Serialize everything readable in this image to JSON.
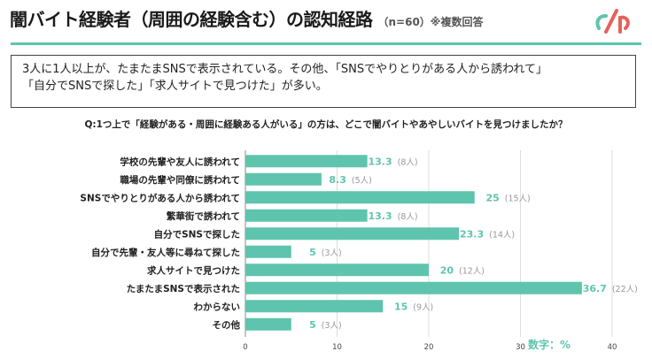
{
  "header": {
    "title": "闇バイト経験者（周囲の経験含む）の認知経路",
    "note": "（n=60）※複数回答",
    "logo_icon": "brand-logo-icon",
    "accent_color": "#5ec4ad"
  },
  "summary": {
    "line1": "3人に1人以上が、たまたまSNSで表示されている。その他、「SNSでやりとりがある人から誘われて」",
    "line2": "「自分でSNSで探した」「求人サイトで見つけた」が多い。"
  },
  "question": "Q:1つ上で「経験がある・周囲に経験ある人がいる」の方は、どこで闇バイトやあやしいバイトを見つけましたか？",
  "unit_label": "数字：%",
  "chart_data": {
    "type": "bar",
    "orientation": "horizontal",
    "categories": [
      "学校の先輩や友人に誘われて",
      "職場の先輩や同僚に誘われて",
      "SNSでやりとりがある人から誘われて",
      "繁華街で誘われて",
      "自分でSNSで探した",
      "自分で先輩・友人等に尋ねて探した",
      "求人サイトで見つけた",
      "たまたまSNSで表示された",
      "わからない",
      "その他"
    ],
    "values": [
      13.3,
      8.3,
      25,
      13.3,
      23.3,
      5,
      20,
      36.7,
      15,
      5
    ],
    "value_labels": [
      "13.3",
      "8.3",
      "25",
      "13.3",
      "23.3",
      "5",
      "20",
      "36.7",
      "15",
      "5"
    ],
    "counts": [
      "(8人)",
      "(5人)",
      "(15人)",
      "(8人)",
      "(14人)",
      "(3人)",
      "(12人)",
      "(22人)",
      "(9人)",
      "(3人)"
    ],
    "xlim": [
      0,
      40
    ],
    "xticks": [
      0,
      10,
      20,
      30,
      40
    ],
    "grid": true,
    "bar_color": "#5ec4ad",
    "label_color": "#5ec4ad",
    "count_color": "#999999"
  }
}
